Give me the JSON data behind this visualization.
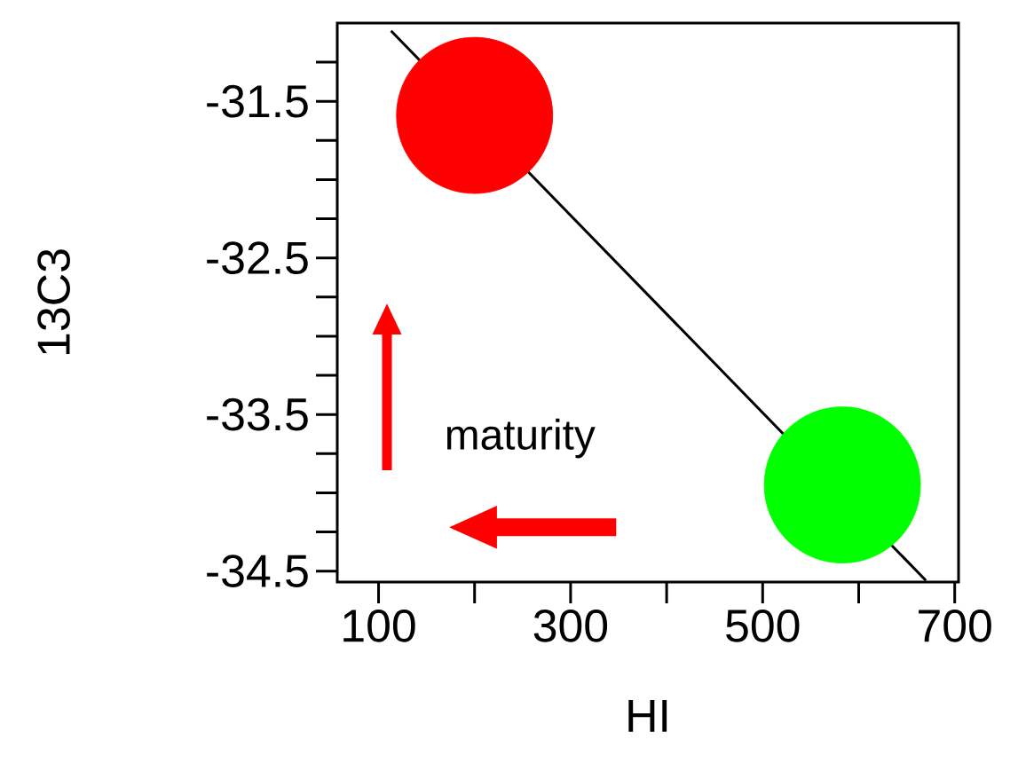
{
  "chart_data": {
    "type": "scatter",
    "xlabel": "HI",
    "ylabel": "13C3",
    "xlim": [
      57,
      704
    ],
    "xticks": [
      100,
      {
        "value": 200,
        "label": null
      },
      300,
      {
        "value": 400,
        "label": null
      },
      500,
      {
        "value": 600,
        "label": null
      },
      700
    ],
    "ylim": [
      -34.57,
      -31.0
    ],
    "yticks": [
      {
        "value": -31.25,
        "label": null
      },
      -31.5,
      {
        "value": -31.75,
        "label": null
      },
      {
        "value": -32.0,
        "label": null
      },
      {
        "value": -32.25,
        "label": null
      },
      -32.5,
      {
        "value": -32.75,
        "label": null
      },
      {
        "value": -33.0,
        "label": null
      },
      {
        "value": -33.25,
        "label": null
      },
      -33.5,
      {
        "value": -33.75,
        "label": null
      },
      {
        "value": -34.0,
        "label": null
      },
      {
        "value": -34.25,
        "label": null
      },
      -34.5
    ],
    "series": [
      {
        "type": "line",
        "x": [
          113,
          670
        ],
        "values": [
          -31.05,
          -34.56
        ],
        "color": "#000000"
      },
      {
        "x": [
          200,
          583
        ],
        "values": [
          -31.59,
          -33.95
        ],
        "colors": [
          "#ff0000",
          "#00ff00"
        ],
        "marker": "circle"
      }
    ],
    "annotations": [
      "maturity"
    ]
  }
}
